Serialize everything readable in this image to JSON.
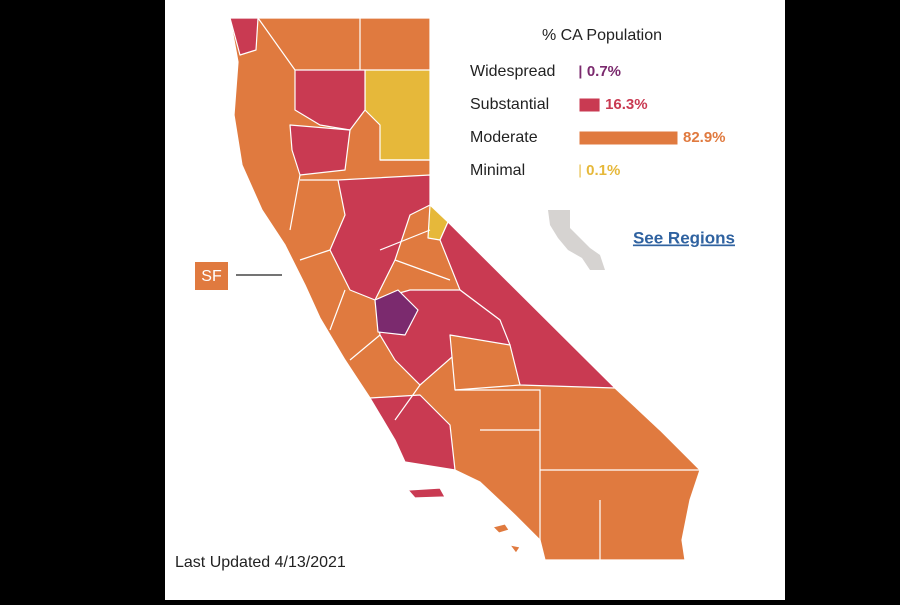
{
  "legend": {
    "title": "% CA Population",
    "items": [
      {
        "name": "Widespread",
        "value": 0.7,
        "value_label": "0.7%",
        "color": "#7b2a6e"
      },
      {
        "name": "Substantial",
        "value": 16.3,
        "value_label": "16.3%",
        "color": "#c93a52"
      },
      {
        "name": "Moderate",
        "value": 82.9,
        "value_label": "82.9%",
        "color": "#e07a3f"
      },
      {
        "name": "Minimal",
        "value": 0.1,
        "value_label": "0.1%",
        "color": "#e6b83a"
      }
    ]
  },
  "link": "See Regions",
  "callout": "SF",
  "footer": "Last Updated 4/13/2021"
}
